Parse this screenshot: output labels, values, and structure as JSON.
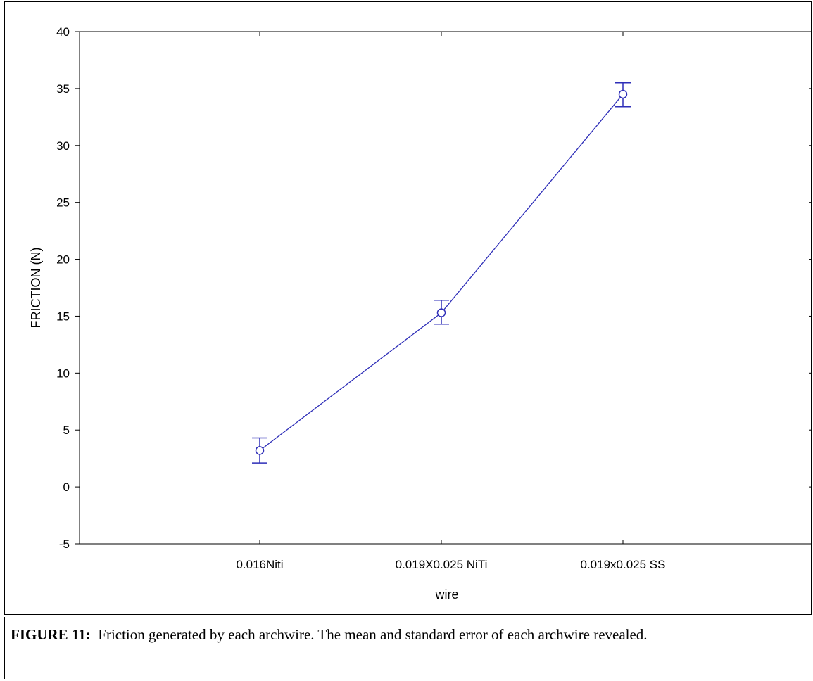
{
  "caption": {
    "label": "FIGURE 11:",
    "text": "Friction generated by each archwire. The mean and standard error of each archwire revealed."
  },
  "chart_data": {
    "type": "line",
    "title": "",
    "xlabel": "wire",
    "ylabel": "FRICTION (N)",
    "categories": [
      "0.016Niti",
      "0.019X0.025  NiTi",
      "0.019x0.025 SS"
    ],
    "series": [
      {
        "values": [
          3.2,
          15.3,
          34.5
        ],
        "error_lower": [
          2.1,
          14.3,
          33.4
        ],
        "error_upper": [
          4.3,
          16.4,
          35.5
        ]
      }
    ],
    "ylim": [
      -5,
      40
    ],
    "yticks": [
      -5,
      0,
      5,
      10,
      15,
      20,
      25,
      30,
      35,
      40
    ],
    "grid": false,
    "line_color": "#2e2eb8"
  }
}
